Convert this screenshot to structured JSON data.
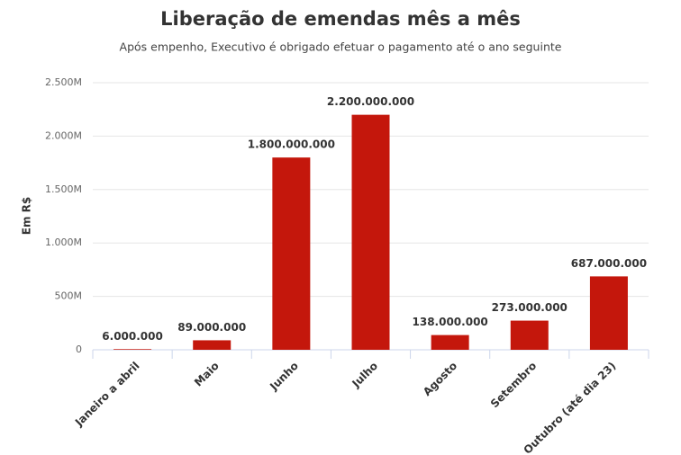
{
  "chart_data": {
    "type": "bar",
    "title": "Liberação de emendas mês a mês",
    "subtitle": "Após empenho, Executivo é obrigado efetuar o pagamento até o ano seguinte",
    "y_label": "Em R$",
    "categories": [
      "Janeiro a abril",
      "Maio",
      "Junho",
      "Julho",
      "Agosto",
      "Setembro",
      "Outubro (até dia 23)"
    ],
    "values": [
      6000000,
      89000000,
      1800000000,
      2200000000,
      138000000,
      273000000,
      687000000
    ],
    "value_labels": [
      "6.000.000",
      "89.000.000",
      "1.800.000.000",
      "2.200.000.000",
      "138.000.000",
      "273.000.000",
      "687.000.000"
    ],
    "color": "#c4170c",
    "ylim": [
      0,
      2500000000
    ],
    "yticks": [
      0,
      {
        "value": 500000000,
        "label": "500M"
      },
      {
        "value": 1000000000,
        "label": "1.000M"
      },
      {
        "value": 1500000000,
        "label": "1.500M"
      },
      {
        "value": 2000000000,
        "label": "2.000M"
      },
      {
        "value": 2500000000,
        "label": "2.500M"
      }
    ],
    "grid": true
  }
}
